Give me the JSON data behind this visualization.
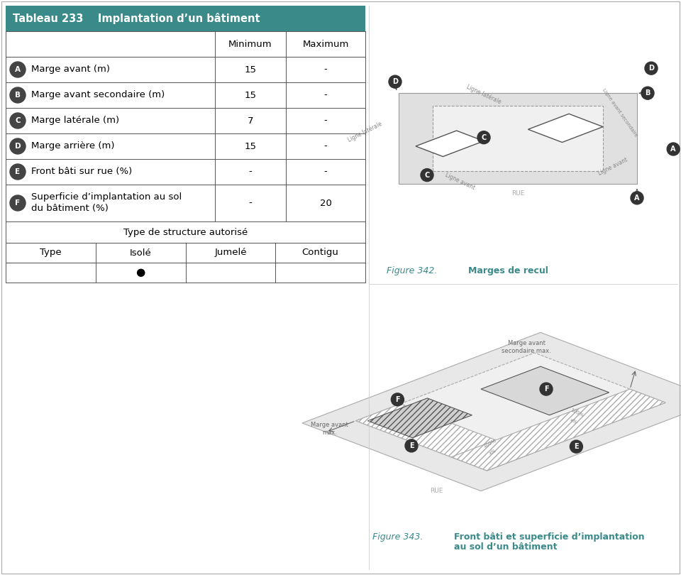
{
  "title": "Tableau 233    Implantation d’un bâtiment",
  "title_bg": "#3a8a8a",
  "title_fg": "#ffffff",
  "rows": [
    {
      "label": "Marge avant (m)",
      "circle": "A",
      "min": "15",
      "max": "-"
    },
    {
      "label": "Marge avant secondaire (m)",
      "circle": "B",
      "min": "15",
      "max": "-"
    },
    {
      "label": "Marge latérale (m)",
      "circle": "C",
      "min": "7",
      "max": "-"
    },
    {
      "label": "Marge arrière (m)",
      "circle": "D",
      "min": "15",
      "max": "-"
    },
    {
      "label": "Front bâti sur rue (%)",
      "circle": "E",
      "min": "-",
      "max": "-"
    },
    {
      "label": "Superficie d’implantation au sol\ndu bâtiment (%)",
      "circle": "F",
      "min": "-",
      "max": "20"
    }
  ],
  "structure_label": "Type de structure autorisé",
  "struct_headers": [
    "Type",
    "Isolé",
    "Jumelé",
    "Contigu"
  ],
  "struct_dot_col": 1,
  "fig342_label": "Figure 342.",
  "fig342_title": "Marges de recul",
  "fig343_label": "Figure 343.",
  "fig343_title": "Front bâti et superficie d’implantation\nau sol d’un bâtiment",
  "teal": "#3a8a8a",
  "border_color": "#555555",
  "circle_bg": "#444444"
}
